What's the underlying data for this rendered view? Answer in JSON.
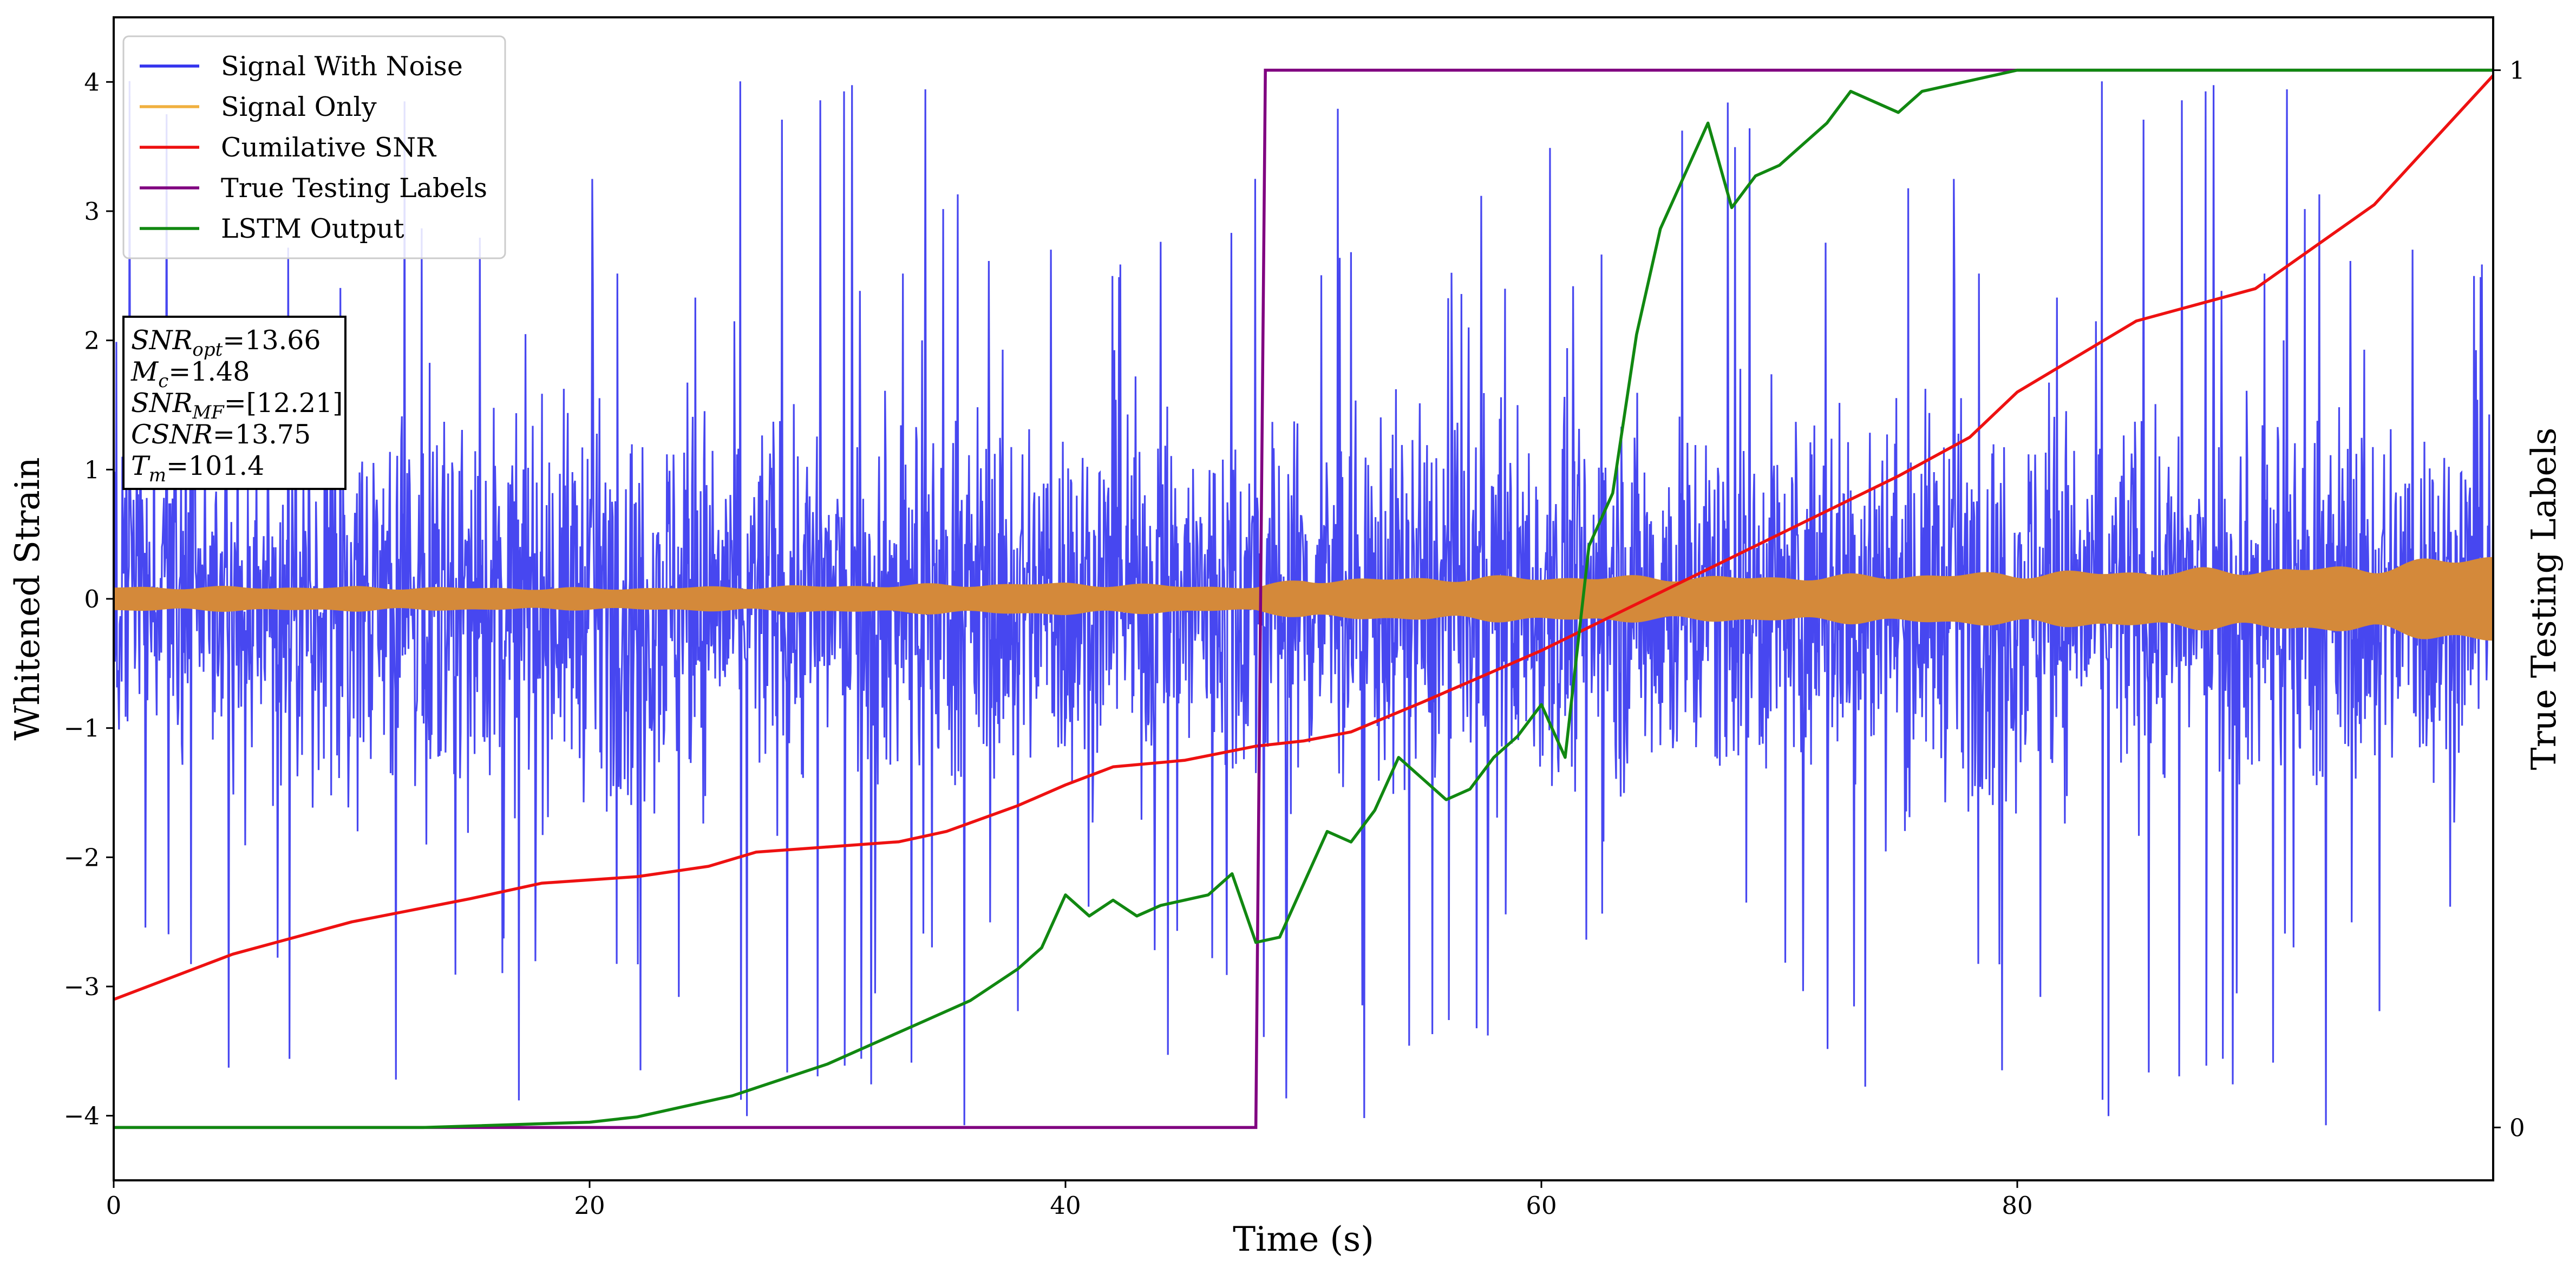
{
  "chart_data": {
    "type": "line",
    "xlabel": "Time (s)",
    "ylabel": "Whitened Strain",
    "y2label": "True Testing Labels",
    "xlim": [
      0,
      100
    ],
    "ylim": [
      -4.5,
      4.5
    ],
    "y2lim": [
      -0.05,
      1.05
    ],
    "x_ticks": [
      0,
      20,
      40,
      60,
      80
    ],
    "y_ticks": [
      -4,
      -3,
      -2,
      -1,
      0,
      1,
      2,
      3,
      4
    ],
    "y2_ticks": [
      0,
      1
    ],
    "grid": false,
    "legend": {
      "position": "top-left",
      "entries": [
        "Signal With Noise",
        "Signal Only",
        "Cumilative SNR",
        "True Testing Labels",
        "LSTM Output"
      ]
    },
    "colors": {
      "signal_with_noise": "#3333ee",
      "signal_only": "#f0b040",
      "signal_only_band": "#d4893a",
      "cumilative_snr": "#ee1111",
      "true_labels": "#800080",
      "lstm_output": "#118811"
    },
    "annotation_box": {
      "lines": [
        {
          "sym": "SNR",
          "sub": "opt",
          "rest": "=13.66"
        },
        {
          "sym": "M",
          "sub": "c",
          "rest": "=1.48"
        },
        {
          "sym": "SNR",
          "sub": "MF",
          "rest": "=[12.21]"
        },
        {
          "sym": "CSNR",
          "sub": "",
          "rest": "=13.75"
        },
        {
          "sym": "T",
          "sub": "m",
          "rest": "=101.4"
        }
      ]
    },
    "series": [
      {
        "name": "Signal With Noise",
        "axis": "left",
        "noise_band_envelope": {
          "x": [
            0,
            100
          ],
          "typical_amplitude": 1.3,
          "peak_amplitude": 4.1
        }
      },
      {
        "name": "Signal Only",
        "axis": "left",
        "envelope": {
          "x": [
            0,
            10,
            20,
            30,
            40,
            48,
            50,
            60,
            70,
            80,
            90,
            95,
            100
          ],
          "amplitude": [
            0.09,
            0.09,
            0.08,
            0.1,
            0.12,
            0.09,
            0.15,
            0.17,
            0.17,
            0.2,
            0.23,
            0.25,
            0.35
          ]
        }
      },
      {
        "name": "Cumilative SNR",
        "axis": "left",
        "x": [
          0,
          5,
          10,
          15,
          18,
          22,
          25,
          27,
          30,
          33,
          35,
          38,
          40,
          42,
          45,
          48,
          50,
          52,
          55,
          60,
          65,
          70,
          75,
          78,
          80,
          85,
          87,
          90,
          95,
          100
        ],
        "y": [
          -3.1,
          -2.75,
          -2.5,
          -2.32,
          -2.2,
          -2.15,
          -2.07,
          -1.96,
          -1.92,
          -1.88,
          -1.8,
          -1.6,
          -1.44,
          -1.3,
          -1.25,
          -1.14,
          -1.1,
          -1.03,
          -0.8,
          -0.4,
          0.05,
          0.5,
          0.95,
          1.25,
          1.6,
          2.15,
          2.25,
          2.4,
          3.05,
          4.05
        ]
      },
      {
        "name": "True Testing Labels",
        "axis": "right",
        "x": [
          0,
          48.0,
          48.4,
          100
        ],
        "y": [
          0,
          0,
          1,
          1
        ]
      },
      {
        "name": "LSTM Output",
        "axis": "right",
        "x": [
          0,
          13,
          20,
          22,
          24,
          26,
          28,
          30,
          32,
          34,
          36,
          38,
          39,
          40,
          41,
          42,
          43,
          44,
          46,
          47,
          48,
          49,
          50,
          51,
          52,
          53,
          54,
          55,
          56,
          57,
          58,
          59,
          60,
          61,
          62,
          63,
          64,
          65,
          66,
          67,
          68,
          69,
          70,
          71,
          72,
          73,
          74,
          75,
          76,
          78,
          80,
          82,
          100
        ],
        "y": [
          0,
          0,
          0.005,
          0.01,
          0.02,
          0.03,
          0.045,
          0.06,
          0.08,
          0.1,
          0.12,
          0.15,
          0.17,
          0.22,
          0.2,
          0.215,
          0.2,
          0.21,
          0.22,
          0.24,
          0.175,
          0.18,
          0.23,
          0.28,
          0.27,
          0.3,
          0.35,
          0.33,
          0.31,
          0.32,
          0.35,
          0.37,
          0.4,
          0.35,
          0.55,
          0.6,
          0.75,
          0.85,
          0.9,
          0.95,
          0.87,
          0.9,
          0.91,
          0.93,
          0.95,
          0.98,
          0.97,
          0.96,
          0.98,
          0.99,
          1.0,
          1.0,
          1.0
        ]
      }
    ]
  }
}
